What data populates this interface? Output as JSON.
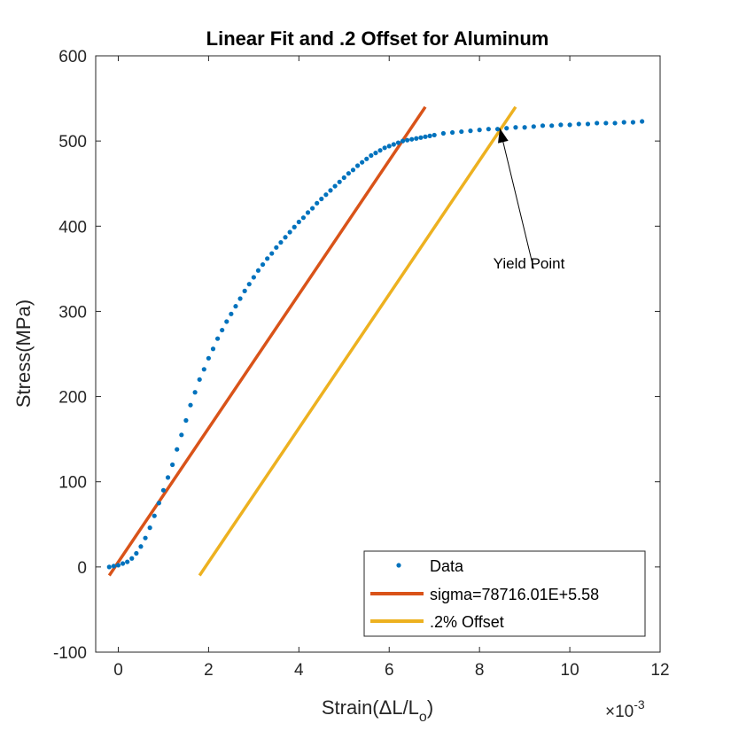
{
  "chart_data": {
    "type": "scatter",
    "title": "Linear Fit and .2 Offset for Aluminum",
    "xlabel": {
      "prefix": "Strain(",
      "delta": "Δ",
      "main": "L/L",
      "subscript": "o",
      "suffix": ")"
    },
    "x_exponent": {
      "times": "×10",
      "power": "-3"
    },
    "ylabel": "Stress(MPa)",
    "xlim": [
      -0.5,
      12
    ],
    "ylim": [
      -100,
      600
    ],
    "xticks": [
      0,
      2,
      4,
      6,
      8,
      10,
      12
    ],
    "xtick_labels": [
      "0",
      "2",
      "4",
      "6",
      "8",
      "10",
      "12"
    ],
    "yticks": [
      -100,
      0,
      100,
      200,
      300,
      400,
      500,
      600
    ],
    "ytick_labels": [
      "-100",
      "0",
      "100",
      "200",
      "300",
      "400",
      "500",
      "600"
    ],
    "grid": false,
    "legend_position": "bottom-right",
    "series": [
      {
        "name": "Data",
        "kind": "points",
        "color": "#0072BD",
        "x": [
          -0.2,
          -0.1,
          0.0,
          0.1,
          0.2,
          0.3,
          0.4,
          0.5,
          0.6,
          0.7,
          0.8,
          0.9,
          1.0,
          1.1,
          1.2,
          1.3,
          1.4,
          1.5,
          1.6,
          1.7,
          1.8,
          1.9,
          2.0,
          2.1,
          2.2,
          2.3,
          2.4,
          2.5,
          2.6,
          2.7,
          2.8,
          2.9,
          3.0,
          3.1,
          3.2,
          3.3,
          3.4,
          3.5,
          3.6,
          3.7,
          3.8,
          3.9,
          4.0,
          4.1,
          4.2,
          4.3,
          4.4,
          4.5,
          4.6,
          4.7,
          4.8,
          4.9,
          5.0,
          5.1,
          5.2,
          5.3,
          5.4,
          5.5,
          5.6,
          5.7,
          5.8,
          5.9,
          6.0,
          6.1,
          6.2,
          6.3,
          6.4,
          6.5,
          6.6,
          6.7,
          6.8,
          6.9,
          7.0,
          7.2,
          7.4,
          7.6,
          7.8,
          8.0,
          8.2,
          8.4,
          8.6,
          8.8,
          9.0,
          9.2,
          9.4,
          9.6,
          9.8,
          10.0,
          10.2,
          10.4,
          10.6,
          10.8,
          11.0,
          11.2,
          11.4,
          11.6
        ],
        "y": [
          0,
          1,
          2,
          4,
          6,
          10,
          16,
          24,
          34,
          46,
          60,
          75,
          90,
          105,
          120,
          138,
          155,
          172,
          190,
          205,
          220,
          232,
          245,
          256,
          268,
          278,
          288,
          297,
          306,
          315,
          324,
          332,
          340,
          348,
          355,
          362,
          368,
          375,
          381,
          387,
          393,
          399,
          405,
          410,
          416,
          421,
          427,
          432,
          437,
          442,
          447,
          452,
          457,
          462,
          466,
          471,
          475,
          479,
          483,
          486,
          489,
          492,
          494,
          496,
          498,
          500,
          501,
          502,
          503,
          504,
          505,
          506,
          507,
          509,
          510,
          511,
          512,
          513,
          514,
          514,
          515,
          516,
          516,
          517,
          518,
          518,
          519,
          519,
          520,
          520,
          521,
          521,
          521,
          522,
          522,
          523
        ]
      },
      {
        "name": "sigma=78716.01E+5.58",
        "kind": "line",
        "color": "#D95319",
        "x": [
          -0.2,
          6.8
        ],
        "y": [
          -10,
          540
        ]
      },
      {
        "name": ".2% Offset",
        "kind": "line",
        "color": "#EDB120",
        "x": [
          1.8,
          8.8
        ],
        "y": [
          -10,
          540
        ]
      }
    ],
    "annotations": [
      {
        "text": "Yield Point",
        "from": [
          9.2,
          350
        ],
        "to": [
          8.45,
          515
        ]
      }
    ]
  }
}
